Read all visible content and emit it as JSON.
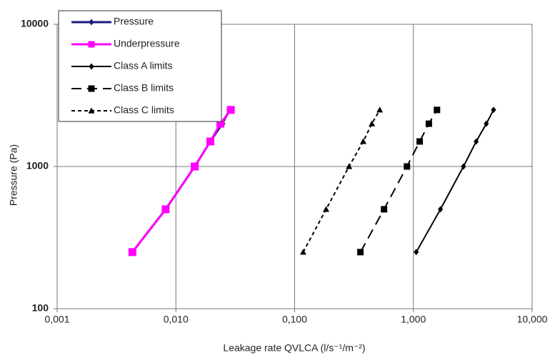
{
  "chart_data": {
    "type": "line",
    "xlabel": "Leakage rate QVLCA (l/s⁻¹/m⁻²)",
    "ylabel": "Pressure (Pa)",
    "xscale": "log",
    "yscale": "log",
    "grid": true,
    "legend": "upper left",
    "xlim": [
      0.001,
      10
    ],
    "ylim": [
      100,
      10000
    ],
    "xticks": [
      {
        "value": 0.001,
        "label": "0,001"
      },
      {
        "value": 0.01,
        "label": "0,010"
      },
      {
        "value": 0.1,
        "label": "0,100"
      },
      {
        "value": 1,
        "label": "1,000"
      },
      {
        "value": 10,
        "label": "10,000"
      }
    ],
    "yticks": [
      100,
      1000,
      10000
    ],
    "series": [
      {
        "name": "Pressure",
        "color": "#1a1a80",
        "marker": "diamond",
        "dash": "solid",
        "x": [
          0.0043,
          0.0082,
          0.0144,
          0.0195,
          0.0246,
          0.0283
        ],
        "y": [
          250,
          500,
          1000,
          1500,
          2000,
          2500
        ]
      },
      {
        "name": "Underpressure",
        "color": "#ff00ff",
        "marker": "square",
        "dash": "solid",
        "x": [
          0.0043,
          0.0082,
          0.0144,
          0.0195,
          0.0237,
          0.029
        ],
        "y": [
          250,
          500,
          1000,
          1500,
          2000,
          2500
        ]
      },
      {
        "name": "Class A limits",
        "color": "#000000",
        "marker": "diamond",
        "dash": "solid",
        "x": [
          1.057,
          1.69,
          2.64,
          3.38,
          4.11,
          4.73
        ],
        "y": [
          250,
          500,
          1000,
          1500,
          2000,
          2500
        ]
      },
      {
        "name": "Class B limits",
        "color": "#000000",
        "marker": "square",
        "dash": "dashed",
        "x": [
          0.358,
          0.566,
          0.883,
          1.13,
          1.35,
          1.58
        ],
        "y": [
          250,
          500,
          1000,
          1500,
          2000,
          2500
        ]
      },
      {
        "name": "Class C limits",
        "color": "#000000",
        "marker": "triangle",
        "dash": "dotted",
        "x": [
          0.118,
          0.184,
          0.287,
          0.378,
          0.447,
          0.521
        ],
        "y": [
          250,
          500,
          1000,
          1500,
          2000,
          2500
        ]
      }
    ]
  }
}
